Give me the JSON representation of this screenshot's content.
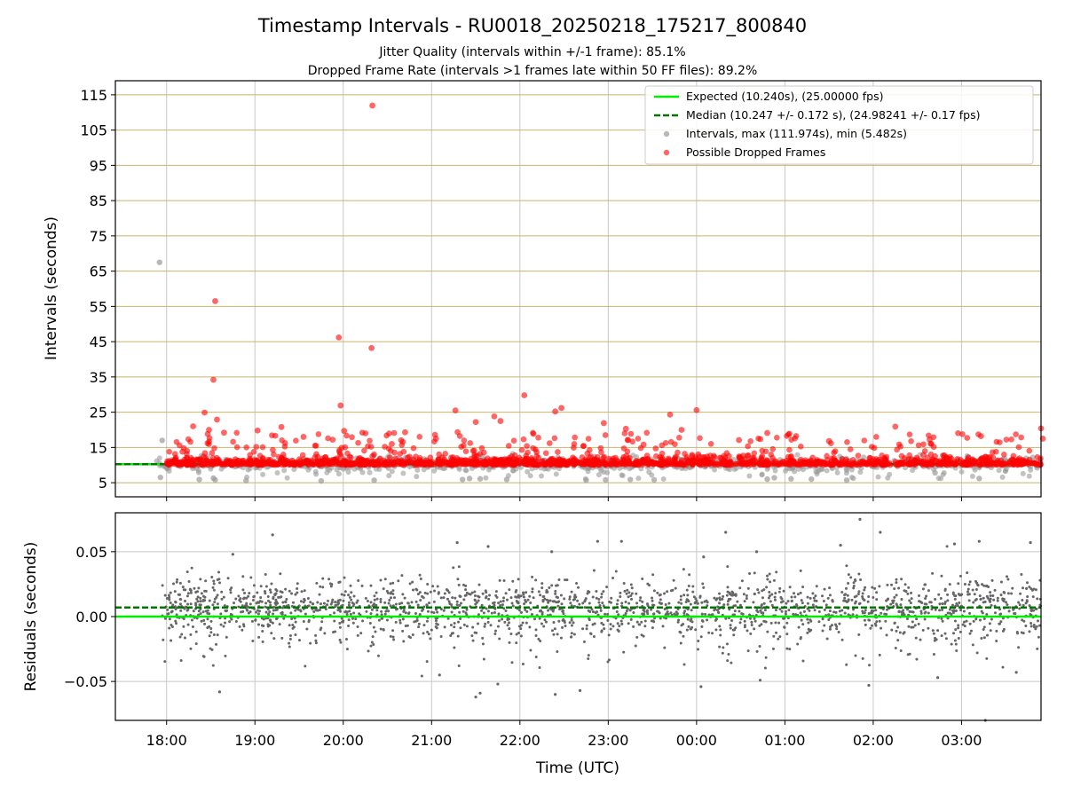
{
  "figure": {
    "title": "Timestamp Intervals - RU0018_20250218_175217_800840",
    "subtitle_1": "Jitter Quality (intervals within +/-1 frame): 85.1%",
    "subtitle_2": "Dropped Frame Rate (intervals >1 frames late within 50 FF files): 89.2%"
  },
  "colors": {
    "expected": "#00ee00",
    "median": "#007700",
    "intervals": "#9a9a9a",
    "dropped": "#ff0000",
    "residuals": "#666666",
    "hgrid_top": "#c8b46a",
    "grid": "#c8c8c8"
  },
  "chart_data": [
    {
      "name": "top",
      "type": "scatter",
      "ylabel": "Intervals (seconds)",
      "xlabel": "",
      "x_start_hours": 17.42,
      "x_end_hours": 27.9,
      "ylim": [
        1,
        119
      ],
      "yticks": [
        5,
        15,
        25,
        35,
        45,
        55,
        65,
        75,
        85,
        95,
        105,
        115
      ],
      "xticks": [
        {
          "h": 18,
          "label": "18:00"
        },
        {
          "h": 19,
          "label": "19:00"
        },
        {
          "h": 20,
          "label": "20:00"
        },
        {
          "h": 21,
          "label": "21:00"
        },
        {
          "h": 22,
          "label": "22:00"
        },
        {
          "h": 23,
          "label": "23:00"
        },
        {
          "h": 24,
          "label": "00:00"
        },
        {
          "h": 25,
          "label": "01:00"
        },
        {
          "h": 26,
          "label": "02:00"
        },
        {
          "h": 27,
          "label": "03:00"
        }
      ],
      "legend": {
        "placement": "top-right",
        "expected": "Expected (10.240s), (25.00000 fps)",
        "median": "Median (10.247 +/- 0.172 s), (24.98241 +/- 0.17 fps)",
        "intervals": "Intervals, max (111.974s), min (5.482s)",
        "dropped": "Possible Dropped Frames"
      },
      "expected_value": 10.24,
      "median_value": 10.247,
      "data_start_hours": 17.88,
      "data_end_hours": 27.9,
      "outliers_dropped": [
        {
          "x": 20.33,
          "y": 111.97
        },
        {
          "x": 18.55,
          "y": 56.5
        },
        {
          "x": 19.95,
          "y": 46.2
        },
        {
          "x": 20.32,
          "y": 43.2
        },
        {
          "x": 18.53,
          "y": 34.2
        },
        {
          "x": 22.05,
          "y": 29.8
        },
        {
          "x": 19.97,
          "y": 26.9
        },
        {
          "x": 22.47,
          "y": 26.2
        },
        {
          "x": 24.0,
          "y": 25.6
        },
        {
          "x": 21.27,
          "y": 25.5
        },
        {
          "x": 22.4,
          "y": 25.2
        },
        {
          "x": 18.43,
          "y": 24.9
        },
        {
          "x": 23.7,
          "y": 24.3
        },
        {
          "x": 21.71,
          "y": 23.8
        },
        {
          "x": 18.57,
          "y": 22.9
        },
        {
          "x": 21.5,
          "y": 22.2
        },
        {
          "x": 21.78,
          "y": 22.5
        },
        {
          "x": 22.95,
          "y": 21.9
        },
        {
          "x": 18.3,
          "y": 21.0
        },
        {
          "x": 19.3,
          "y": 20.8
        },
        {
          "x": 26.25,
          "y": 20.9
        },
        {
          "x": 27.9,
          "y": 20.4
        },
        {
          "x": 23.2,
          "y": 20.3
        },
        {
          "x": 18.48,
          "y": 20.0
        },
        {
          "x": 19.03,
          "y": 19.8
        },
        {
          "x": 23.83,
          "y": 20.0
        },
        {
          "x": 20.01,
          "y": 19.7
        },
        {
          "x": 24.8,
          "y": 19.1
        },
        {
          "x": 25.05,
          "y": 18.9
        },
        {
          "x": 18.65,
          "y": 19.2
        },
        {
          "x": 20.7,
          "y": 19.3
        },
        {
          "x": 21.05,
          "y": 17.5
        },
        {
          "x": 19.88,
          "y": 17.2
        },
        {
          "x": 24.48,
          "y": 17.1
        },
        {
          "x": 27.22,
          "y": 18.2
        },
        {
          "x": 23.4,
          "y": 15.8
        },
        {
          "x": 25.5,
          "y": 16.8
        },
        {
          "x": 26.65,
          "y": 16.1
        },
        {
          "x": 27.92,
          "y": 17.5
        },
        {
          "x": 20.55,
          "y": 16.0
        },
        {
          "x": 19.55,
          "y": 18.0
        },
        {
          "x": 22.72,
          "y": 15.4
        }
      ],
      "outliers_intervals": [
        {
          "x": 17.92,
          "y": 67.5
        },
        {
          "x": 17.95,
          "y": 17.0
        },
        {
          "x": 17.93,
          "y": 6.5
        },
        {
          "x": 18.55,
          "y": 5.8
        },
        {
          "x": 18.53,
          "y": 6.3
        },
        {
          "x": 18.37,
          "y": 5.9
        },
        {
          "x": 18.9,
          "y": 5.6
        },
        {
          "x": 19.75,
          "y": 5.5
        },
        {
          "x": 20.35,
          "y": 5.7
        },
        {
          "x": 21.35,
          "y": 5.9
        },
        {
          "x": 21.43,
          "y": 6.2
        },
        {
          "x": 21.55,
          "y": 6.1
        },
        {
          "x": 21.85,
          "y": 5.9
        },
        {
          "x": 22.75,
          "y": 5.7
        },
        {
          "x": 22.97,
          "y": 5.8
        },
        {
          "x": 23.25,
          "y": 5.9
        },
        {
          "x": 23.52,
          "y": 5.8
        },
        {
          "x": 24.8,
          "y": 6.0
        },
        {
          "x": 24.88,
          "y": 6.4
        },
        {
          "x": 25.07,
          "y": 6.1
        },
        {
          "x": 25.3,
          "y": 6.0
        },
        {
          "x": 25.7,
          "y": 5.7
        },
        {
          "x": 26.7,
          "y": 7.8
        },
        {
          "x": 27.2,
          "y": 6.2
        }
      ]
    },
    {
      "name": "bottom",
      "type": "scatter",
      "ylabel": "Residuals (seconds)",
      "xlabel": "Time (UTC)",
      "ylim": [
        -0.08,
        0.08
      ],
      "yticks": [
        {
          "v": 0.05,
          "label": "0.05"
        },
        {
          "v": 0.0,
          "label": "0.00"
        },
        {
          "v": -0.05,
          "label": "−0.05"
        }
      ],
      "expected_value": 0.0,
      "median_value": 0.007,
      "outliers": [
        {
          "x": 25.85,
          "y": 0.075
        },
        {
          "x": 19.2,
          "y": 0.063
        },
        {
          "x": 24.33,
          "y": 0.065
        },
        {
          "x": 26.08,
          "y": 0.065
        },
        {
          "x": 22.88,
          "y": 0.058
        },
        {
          "x": 23.15,
          "y": 0.058
        },
        {
          "x": 26.92,
          "y": 0.056
        },
        {
          "x": 27.78,
          "y": 0.057
        },
        {
          "x": 27.2,
          "y": 0.058
        },
        {
          "x": 21.29,
          "y": 0.057
        },
        {
          "x": 25.63,
          "y": 0.055
        },
        {
          "x": 18.75,
          "y": 0.048
        },
        {
          "x": 24.08,
          "y": 0.046
        },
        {
          "x": 21.64,
          "y": 0.054
        },
        {
          "x": 22.36,
          "y": 0.05
        },
        {
          "x": 24.68,
          "y": 0.05
        },
        {
          "x": 21.5,
          "y": -0.062
        },
        {
          "x": 22.4,
          "y": -0.06
        },
        {
          "x": 21.55,
          "y": -0.059
        },
        {
          "x": 18.6,
          "y": -0.058
        },
        {
          "x": 27.27,
          "y": -0.08
        },
        {
          "x": 24.05,
          "y": -0.054
        },
        {
          "x": 25.95,
          "y": -0.053
        },
        {
          "x": 22.68,
          "y": -0.057
        },
        {
          "x": 24.72,
          "y": -0.049
        },
        {
          "x": 21.75,
          "y": -0.052
        },
        {
          "x": 27.62,
          "y": -0.043
        },
        {
          "x": 26.73,
          "y": -0.047
        },
        {
          "x": 21.09,
          "y": -0.045
        }
      ]
    }
  ]
}
